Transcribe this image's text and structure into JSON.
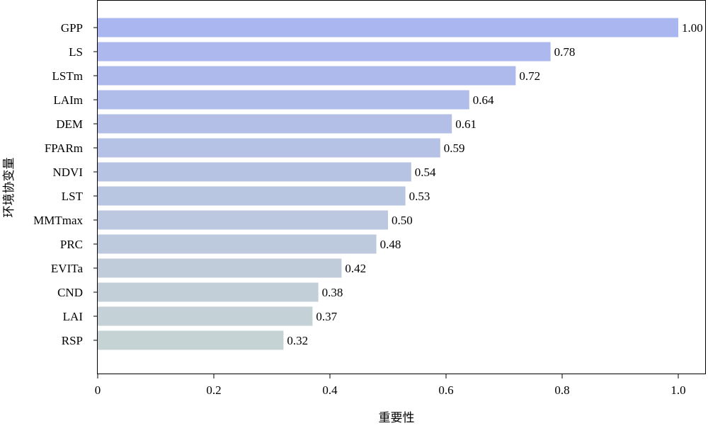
{
  "chart_data": {
    "type": "bar",
    "orientation": "horizontal",
    "categories": [
      "GPP",
      "LS",
      "LSTm",
      "LAIm",
      "DEM",
      "FPARm",
      "NDVI",
      "LST",
      "MMTmax",
      "PRC",
      "EVITa",
      "CND",
      "LAI",
      "RSP"
    ],
    "values": [
      1.0,
      0.78,
      0.72,
      0.64,
      0.61,
      0.59,
      0.54,
      0.53,
      0.5,
      0.48,
      0.42,
      0.38,
      0.37,
      0.32
    ],
    "value_labels": [
      "1.00",
      "0.78",
      "0.72",
      "0.64",
      "0.61",
      "0.59",
      "0.54",
      "0.53",
      "0.50",
      "0.48",
      "0.42",
      "0.38",
      "0.37",
      "0.32"
    ],
    "xlabel": "重要性",
    "ylabel": "环境协变量",
    "xlim": [
      0,
      1.04
    ],
    "xticks": [
      0,
      0.2,
      0.4,
      0.6,
      0.8,
      1.0
    ],
    "xtick_labels": [
      "0",
      "0.2",
      "0.4",
      "0.6",
      "0.8",
      "1.0"
    ],
    "grid": false,
    "legend": "none",
    "colors": {
      "gradient_top": "#aab6f0",
      "gradient_bottom": "#c6d3d4",
      "axis": "#000000"
    }
  }
}
